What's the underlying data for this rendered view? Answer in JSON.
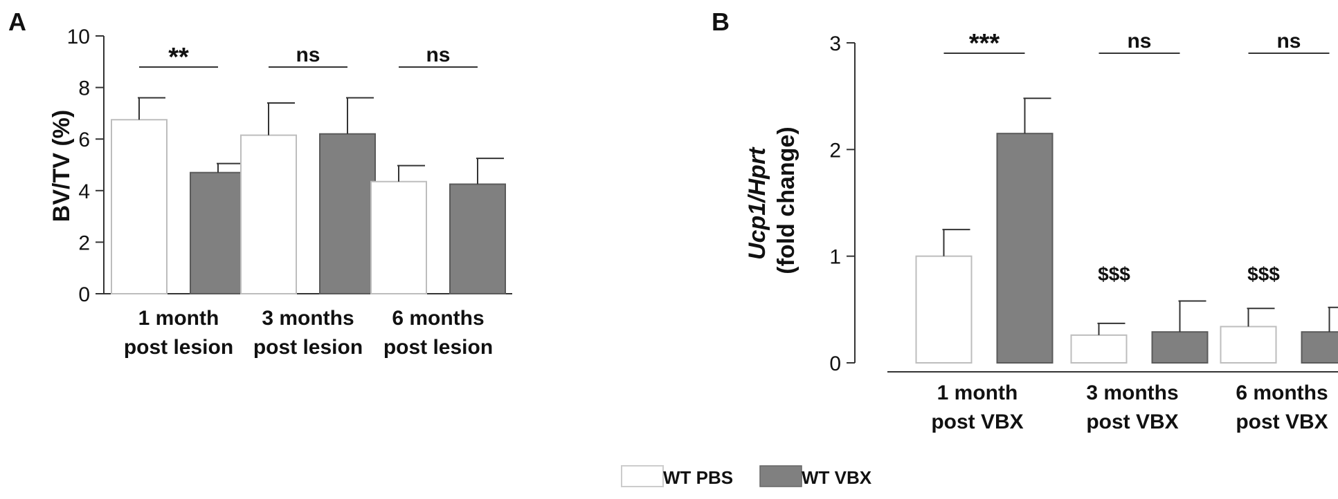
{
  "colors": {
    "pbs": "#ffffff",
    "vbx": "#808080",
    "axis": "#333333",
    "text": "#111111"
  },
  "legend": {
    "items": [
      {
        "label": "WT PBS",
        "color": "#ffffff"
      },
      {
        "label": "WT VBX",
        "color": "#808080"
      }
    ]
  },
  "chart_data": [
    {
      "type": "bar",
      "panel_label": "A",
      "ylabel": "BV/TV (%)",
      "ylabel_italic": "",
      "ylabel_rest": "",
      "ylim": [
        0,
        10
      ],
      "yticks": [
        "0",
        "2",
        "4",
        "6",
        "8",
        "10"
      ],
      "ytick_values": [
        0,
        2,
        4,
        6,
        8,
        10
      ],
      "categories": [
        [
          "1 month",
          "post lesion"
        ],
        [
          "3 months",
          "post lesion"
        ],
        [
          "6 months",
          "post lesion"
        ]
      ],
      "series": [
        {
          "name": "WT PBS",
          "values": [
            6.75,
            6.15,
            4.35
          ],
          "errors": [
            0.85,
            1.25,
            0.62
          ]
        },
        {
          "name": "WT VBX",
          "values": [
            4.7,
            6.2,
            4.25
          ],
          "errors": [
            0.35,
            1.4,
            1.0
          ]
        }
      ],
      "significance": [
        "**",
        "ns",
        "ns"
      ],
      "annotations": [
        "",
        "",
        ""
      ],
      "group_underlines": false
    },
    {
      "type": "bar",
      "panel_label": "B",
      "ylabel": "",
      "ylabel_italic": "Ucp1/Hprt",
      "ylabel_rest": "(fold change)",
      "ylim": [
        0,
        3
      ],
      "yticks": [
        "0",
        "1",
        "2",
        "3"
      ],
      "ytick_values": [
        0,
        1,
        2,
        3
      ],
      "categories": [
        [
          "1 month",
          "post VBX"
        ],
        [
          "3 months",
          "post VBX"
        ],
        [
          "6 months",
          "post VBX"
        ]
      ],
      "series": [
        {
          "name": "WT PBS",
          "values": [
            1.0,
            0.26,
            0.34
          ],
          "errors": [
            0.25,
            0.11,
            0.17
          ]
        },
        {
          "name": "WT VBX",
          "values": [
            2.15,
            0.29,
            0.29
          ],
          "errors": [
            0.33,
            0.29,
            0.23
          ]
        }
      ],
      "significance": [
        "***",
        "ns",
        "ns"
      ],
      "annotations": [
        "",
        "$$$",
        "$$$"
      ],
      "group_underlines": true
    }
  ]
}
